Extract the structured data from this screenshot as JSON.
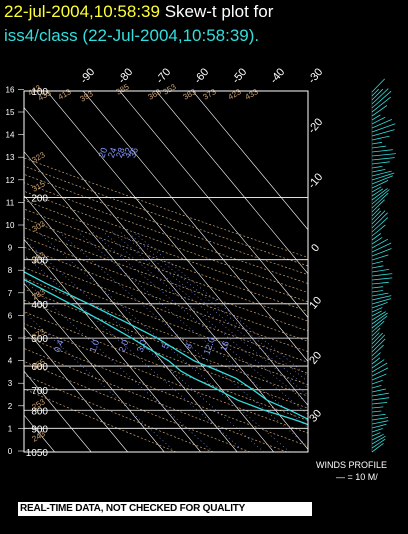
{
  "header": {
    "timestamp": "22-jul-2004,10:58:39",
    "title_suffix": "Skew-t plot for",
    "subtitle": "iss4/class (22-Jul-2004,10:58:39)."
  },
  "footer": {
    "notice": "REAL-TIME DATA, NOT CHECKED FOR QUALITY"
  },
  "winds_panel": {
    "label": "WINDS PROFILE",
    "scale": "— = 10 M/"
  },
  "colors": {
    "background": "#000000",
    "trace": "#33dddd",
    "grid": "#ffffff",
    "dry_adiabat": "#c8a070",
    "mixing_ratio": "#8899ff",
    "title": "#ffffff",
    "timestamp": "#ffff33"
  },
  "chart_data": {
    "type": "line",
    "left_axis_labels": [
      "0",
      "1",
      "2",
      "3",
      "4",
      "5",
      "6",
      "7",
      "8",
      "9",
      "10",
      "11",
      "12",
      "13",
      "14",
      "15",
      "16"
    ],
    "pressure_levels": [
      1050,
      900,
      800,
      700,
      600,
      500,
      400,
      300,
      200,
      100
    ],
    "pressure_labels": [
      "1050",
      "900",
      "800",
      "700",
      "600",
      "500",
      "400",
      "300",
      "200",
      "100"
    ],
    "top_temperature_labels": [
      "-90",
      "-80",
      "-70",
      "-60",
      "-50",
      "-40",
      "-30"
    ],
    "right_temperature_labels": [
      "-20",
      "-10",
      "0",
      "10",
      "20",
      "30"
    ],
    "mixing_ratio_labels": [
      "0.4",
      "1.0",
      "2.0",
      "3.0",
      "5",
      "8",
      "12.0",
      "16",
      "20",
      "24",
      "28",
      "32",
      "36"
    ],
    "dry_adiabat_labels": [
      "443",
      "433",
      "413",
      "393",
      "385",
      "363",
      "353",
      "323",
      "315",
      "303",
      "293",
      "283",
      "273",
      "265",
      "253",
      "243",
      "433",
      "423",
      "383",
      "373"
    ],
    "series": [
      {
        "values": [
          [
            1010,
            26
          ],
          [
            980,
            24.5
          ],
          [
            950,
            22.5
          ],
          [
            920,
            21
          ],
          [
            900,
            20
          ],
          [
            870,
            18.5
          ],
          [
            850,
            17
          ],
          [
            800,
            14
          ],
          [
            750,
            10
          ],
          [
            700,
            8.5
          ],
          [
            650,
            6.5
          ],
          [
            620,
            3.5
          ],
          [
            580,
            -1
          ],
          [
            500,
            -6
          ],
          [
            450,
            -11
          ],
          [
            400,
            -17
          ],
          [
            350,
            -24
          ],
          [
            300,
            -31
          ],
          [
            250,
            -40
          ],
          [
            200,
            -49
          ],
          [
            180,
            -54
          ],
          [
            160,
            -60
          ],
          [
            150,
            -62
          ],
          [
            140,
            -64
          ],
          [
            130,
            -67
          ],
          [
            120,
            -70
          ],
          [
            110,
            -72
          ],
          [
            105,
            -74
          ],
          [
            100,
            -75
          ]
        ]
      },
      {
        "values": [
          [
            1010,
            22
          ],
          [
            980,
            21
          ],
          [
            950,
            19.5
          ],
          [
            920,
            18
          ],
          [
            900,
            17
          ],
          [
            870,
            15
          ],
          [
            850,
            13
          ],
          [
            800,
            7
          ],
          [
            750,
            2
          ],
          [
            700,
            -1
          ],
          [
            650,
            -5
          ],
          [
            620,
            -7
          ],
          [
            580,
            -8
          ],
          [
            500,
            -13
          ],
          [
            450,
            -17
          ],
          [
            400,
            -22
          ],
          [
            350,
            -28
          ],
          [
            300,
            -35
          ],
          [
            250,
            -44
          ],
          [
            200,
            -53
          ],
          [
            180,
            -58
          ],
          [
            160,
            -64
          ],
          [
            150,
            -66
          ],
          [
            140,
            -68
          ],
          [
            130,
            -71
          ],
          [
            120,
            -74
          ],
          [
            110,
            -76
          ],
          [
            105,
            -78
          ],
          [
            100,
            -79
          ]
        ]
      }
    ]
  }
}
